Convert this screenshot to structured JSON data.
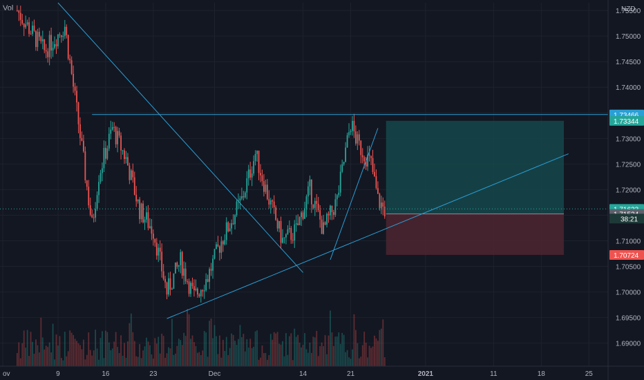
{
  "instrument": {
    "quote_currency": "NZD",
    "volume_label": "Vol",
    "countdown": "38:21"
  },
  "colors": {
    "background": "#131722",
    "up": "#26a69a",
    "down": "#ef5350",
    "trendline": "#2a9fd6",
    "target_zone": "#15484b",
    "stop_zone": "#4a2530"
  },
  "chart_data": {
    "type": "candlestick",
    "y_axis": {
      "range": [
        1.6855,
        1.7565
      ],
      "ticks": [
        "1.75500",
        "1.75000",
        "1.74500",
        "1.74000",
        "1.73500",
        "1.73000",
        "1.72500",
        "1.72000",
        "1.71500",
        "1.71000",
        "1.70500",
        "1.70000",
        "1.69500",
        "1.69000"
      ]
    },
    "x_axis": {
      "labels": [
        "ov",
        "9",
        "16",
        "23",
        "Dec",
        "14",
        "21",
        "2021",
        "11",
        "18",
        "25"
      ]
    },
    "price_tags": [
      {
        "value": "1.73466",
        "color": "#2a9fd6"
      },
      {
        "value": "1.73344",
        "color": "#26a69a"
      },
      {
        "value": "1.71623",
        "color": "#26a69a"
      },
      {
        "value": "1.71524",
        "color": "#5d606b"
      },
      {
        "value": "1.70724",
        "color": "#ef5350"
      }
    ],
    "position": {
      "entry": 1.71524,
      "target": 1.73344,
      "stop": 1.70724
    },
    "horizontal_line": 1.73466,
    "last_price": 1.71623,
    "trendlines": [
      {
        "from": [
          "Nov 8",
          1.7565
        ],
        "to": [
          "Dec 14",
          1.7038
        ]
      },
      {
        "from": [
          "Nov 24",
          1.6948
        ],
        "to": [
          "Jan 22",
          1.727
        ]
      },
      {
        "from": [
          "Dec 18",
          1.7063
        ],
        "to": [
          "Dec 25",
          1.732
        ]
      }
    ],
    "price_path": [
      [
        "Nov 2",
        1.755
      ],
      [
        "Nov 6",
        1.747
      ],
      [
        "Nov 9",
        1.752
      ],
      [
        "Nov 11",
        1.733
      ],
      [
        "Nov 13",
        1.713
      ],
      [
        "Nov 14",
        1.723
      ],
      [
        "Nov 16",
        1.732
      ],
      [
        "Nov 18",
        1.726
      ],
      [
        "Nov 20",
        1.716
      ],
      [
        "Nov 22",
        1.712
      ],
      [
        "Nov 24",
        1.7
      ],
      [
        "Nov 26",
        1.706
      ],
      [
        "Nov 28",
        1.699
      ],
      [
        "Nov 30",
        1.703
      ],
      [
        "Dec 2",
        1.71
      ],
      [
        "Dec 5",
        1.718
      ],
      [
        "Dec 7",
        1.727
      ],
      [
        "Dec 9",
        1.718
      ],
      [
        "Dec 11",
        1.71
      ],
      [
        "Dec 13",
        1.712
      ],
      [
        "Dec 15",
        1.72
      ],
      [
        "Dec 17",
        1.712
      ],
      [
        "Dec 19",
        1.718
      ],
      [
        "Dec 21",
        1.733
      ],
      [
        "Dec 22",
        1.729
      ],
      [
        "Dec 24",
        1.725
      ],
      [
        "Dec 25",
        1.718
      ],
      [
        "Dec 26",
        1.716
      ]
    ]
  }
}
